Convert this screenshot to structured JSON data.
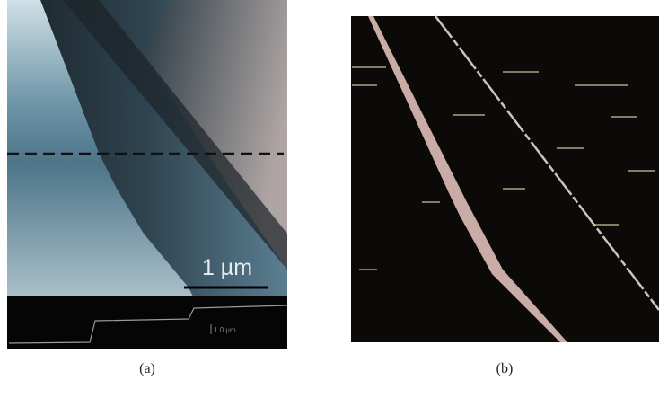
{
  "panels": [
    {
      "label": "(a)",
      "scale_bar": "1 µm",
      "profile_scale": "1.0 µm"
    },
    {
      "label": "(b)"
    }
  ]
}
